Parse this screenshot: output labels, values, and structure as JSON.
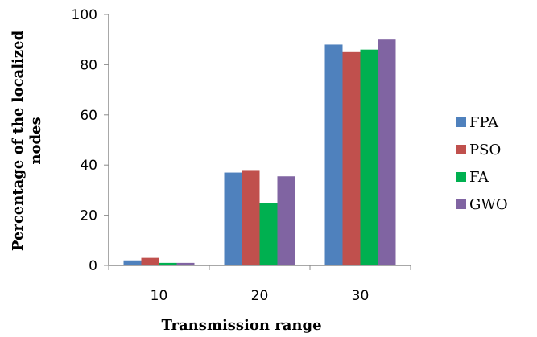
{
  "chart_data": {
    "type": "bar",
    "categories": [
      "10",
      "20",
      "30"
    ],
    "series": [
      {
        "name": "FPA",
        "values": [
          2,
          37,
          88
        ],
        "color": "#4f81bd"
      },
      {
        "name": "PSO",
        "values": [
          3,
          38,
          85
        ],
        "color": "#c0504d"
      },
      {
        "name": "FA",
        "values": [
          1,
          25,
          86
        ],
        "color": "#00b050"
      },
      {
        "name": "GWO",
        "values": [
          1,
          35.5,
          90
        ],
        "color": "#8064a2"
      }
    ],
    "xlabel": "Transmission range",
    "ylabel_lines": [
      "Percentage of the localized",
      "nodes"
    ],
    "ylim": [
      0,
      100
    ],
    "yticks": [
      "0",
      "20",
      "40",
      "60",
      "80",
      "100"
    ],
    "grid": false,
    "legend_position": "right"
  }
}
